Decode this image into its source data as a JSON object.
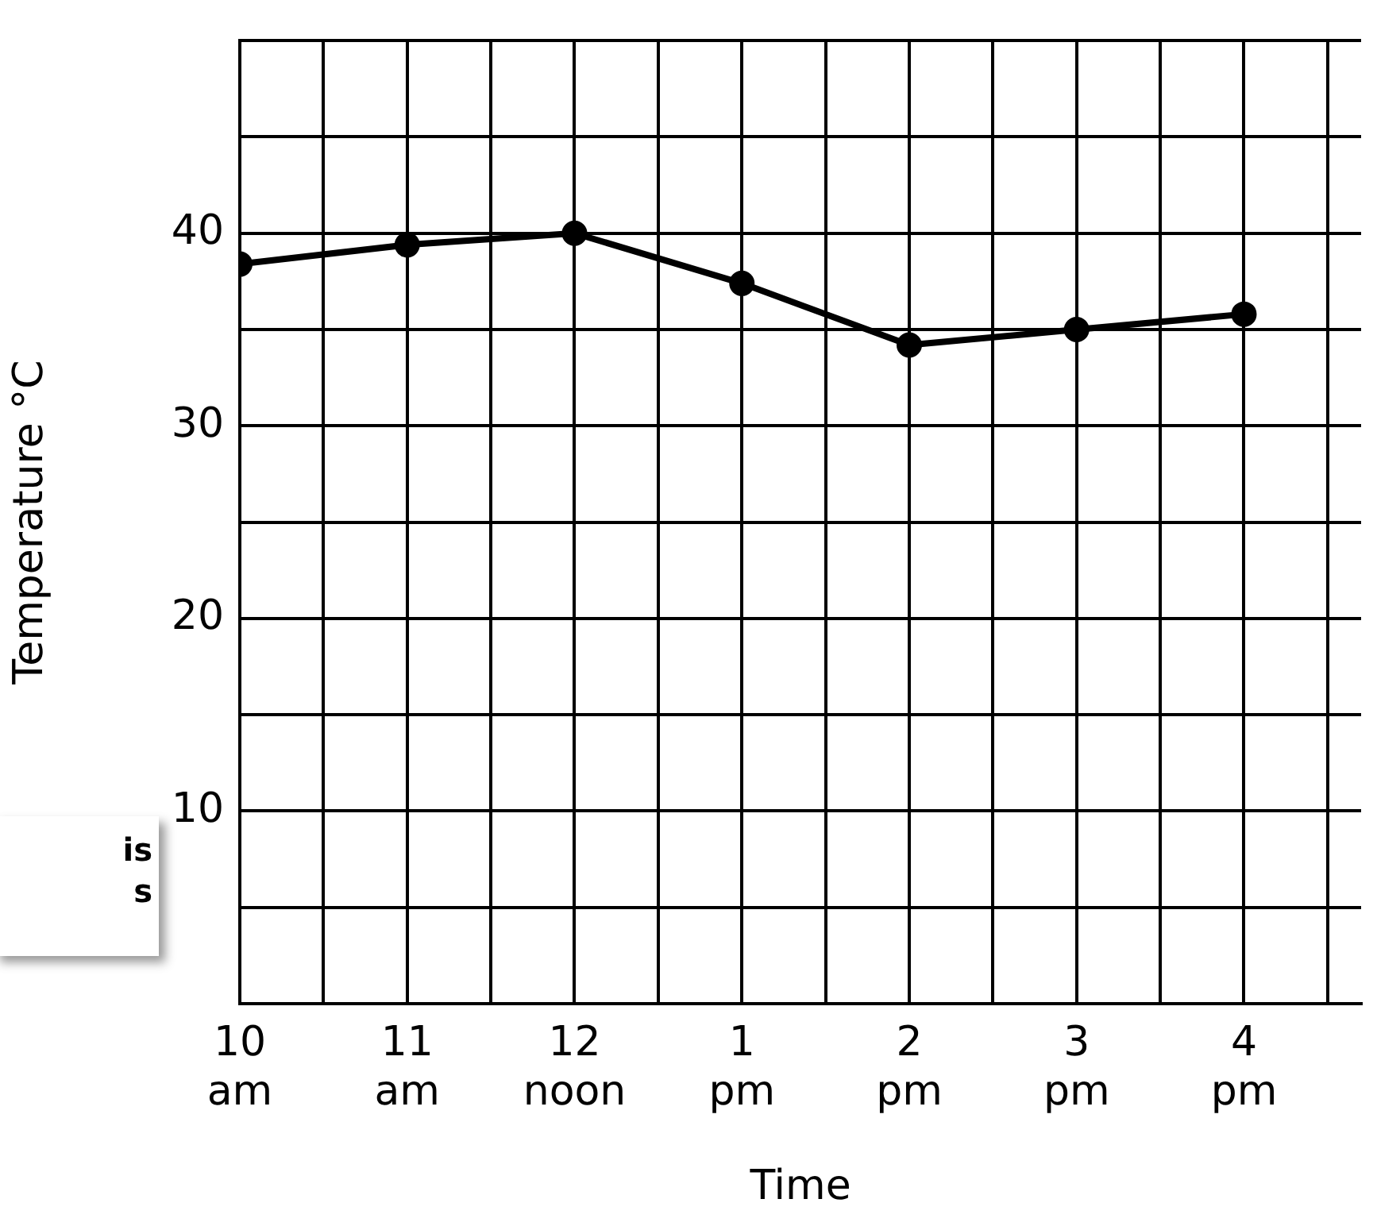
{
  "chart_data": {
    "type": "line",
    "xlabel": "Time",
    "ylabel": "Temperature °C",
    "categories": [
      "10\nam",
      "11\nam",
      "12\nnoon",
      "1\npm",
      "2\npm",
      "3\npm",
      "4\npm"
    ],
    "series": [
      {
        "color": "#000000",
        "values": [
          38.4,
          39.4,
          40,
          37.4,
          34.2,
          35,
          35.8
        ]
      }
    ],
    "ylim": [
      0,
      50
    ],
    "yticks": [
      {
        "value": 0,
        "label": null
      },
      {
        "value": 5,
        "label": null
      },
      10,
      {
        "value": 15,
        "label": null
      },
      20,
      {
        "value": 25,
        "label": null
      },
      30,
      {
        "value": 35,
        "label": null
      },
      40,
      {
        "value": 45,
        "label": null
      },
      {
        "value": 50,
        "label": null
      }
    ],
    "grid": true,
    "legend": false,
    "marker": "circle",
    "line_style": "solid",
    "annotations": [
      "is\ns"
    ]
  }
}
